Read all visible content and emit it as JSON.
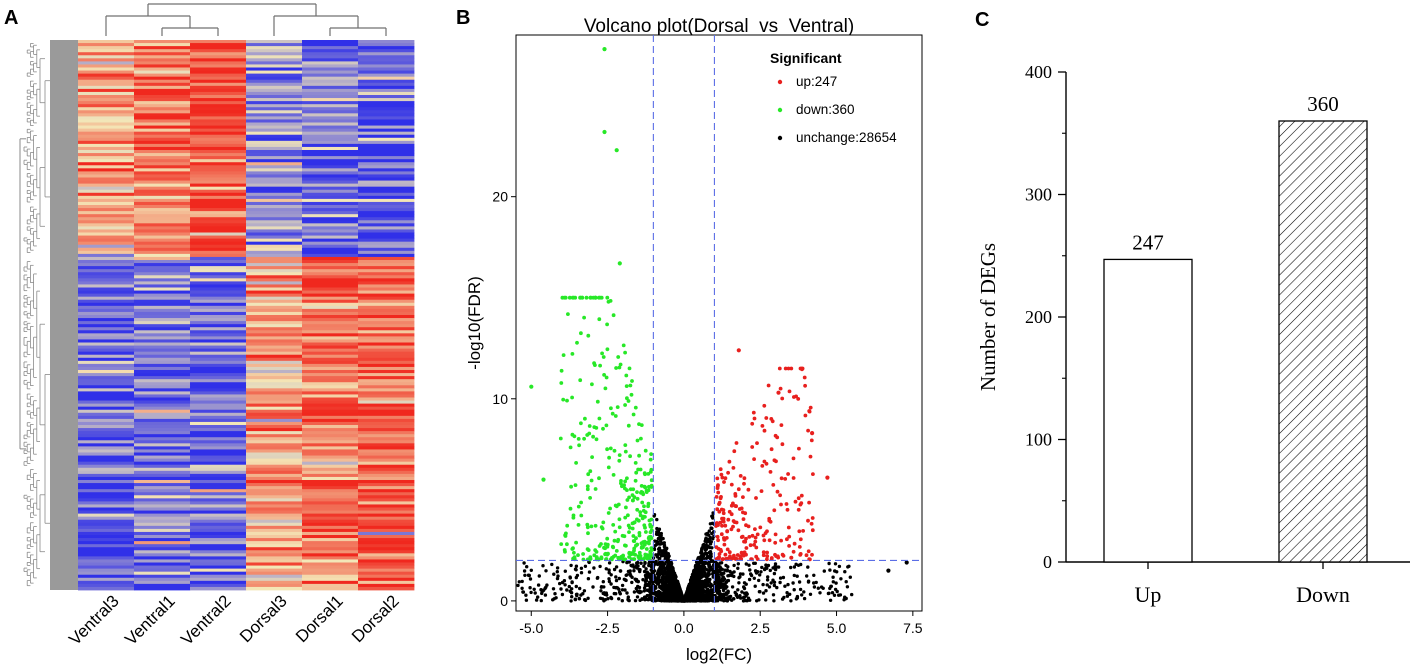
{
  "chart_data": [
    {
      "type": "heatmap",
      "panel_label": "A",
      "columns": [
        "Ventral3",
        "Ventral1",
        "Ventral2",
        "Dorsal3",
        "Dorsal1",
        "Dorsal2"
      ],
      "col_groups": [
        {
          "name": "Ventral",
          "members": [
            "Ventral3",
            "Ventral1",
            "Ventral2"
          ]
        },
        {
          "name": "Dorsal",
          "members": [
            "Dorsal3",
            "Dorsal1",
            "Dorsal2"
          ]
        }
      ],
      "row_clusters": [
        {
          "cluster": "ventral-high",
          "row_fraction": 0.392,
          "mean_profile": [
            0.35,
            0.6,
            0.75,
            -0.45,
            -0.65,
            -0.75
          ]
        },
        {
          "cluster": "dorsal-high",
          "row_fraction": 0.608,
          "mean_profile": [
            -0.7,
            -0.55,
            -0.65,
            0.35,
            0.6,
            0.7
          ]
        }
      ],
      "color_scale": {
        "low": "#3030e8",
        "mid": "#f4e8b8",
        "high": "#f0281e"
      },
      "colors": {
        "dendrogram": "#8a8a8a",
        "dendrogram_top": "#707070"
      }
    },
    {
      "type": "scatter",
      "panel_label": "B",
      "title": "Volcano plot(Dorsal_vs_Ventral)",
      "xlabel": "log2(FC)",
      "ylabel": "-log10(FDR)",
      "xlim": [
        -5.5,
        7.8
      ],
      "ylim": [
        -0.5,
        28
      ],
      "xticks": [
        -5.0,
        -2.5,
        0.0,
        2.5,
        5.0,
        7.5
      ],
      "xtick_labels": [
        "-5.0",
        "-2.5",
        "0.0",
        "2.5",
        "5.0",
        "7.5"
      ],
      "yticks": [
        0,
        10,
        20
      ],
      "ytick_labels": [
        "0",
        "10",
        "20"
      ],
      "thresholds": {
        "fc_low": -1,
        "fc_high": 1,
        "fdr_line": 2
      },
      "legend": {
        "title": "Significant",
        "position": "top-right",
        "entries": [
          {
            "key": "up",
            "label": "up:247",
            "color": "#e8201e"
          },
          {
            "key": "down",
            "label": "down:360",
            "color": "#27e827"
          },
          {
            "key": "unchange",
            "label": "unchange:28654",
            "color": "#000000"
          }
        ]
      },
      "series": [
        {
          "name": "up",
          "count": 247
        },
        {
          "name": "down",
          "count": 360
        },
        {
          "name": "unchange",
          "count": 28654
        }
      ],
      "notable_points": [
        {
          "series": "down",
          "x": -2.6,
          "y": 27.3
        },
        {
          "series": "down",
          "x": -2.6,
          "y": 23.2
        },
        {
          "series": "down",
          "x": -2.2,
          "y": 22.3
        },
        {
          "series": "down",
          "x": -2.1,
          "y": 16.7
        },
        {
          "series": "down",
          "x": -5.0,
          "y": 10.6
        },
        {
          "series": "down",
          "x": -4.6,
          "y": 6.0
        },
        {
          "series": "up",
          "x": 1.8,
          "y": 12.4
        },
        {
          "series": "up",
          "x": 3.1,
          "y": 10.3
        },
        {
          "series": "up",
          "x": 4.2,
          "y": 8.3
        },
        {
          "series": "up",
          "x": 4.7,
          "y": 6.1
        },
        {
          "series": "unchange",
          "x": 7.3,
          "y": 1.9
        },
        {
          "series": "unchange",
          "x": 6.7,
          "y": 1.5
        }
      ],
      "colors": {
        "threshold_line": "#5b6ee6",
        "axis": "#000000"
      }
    },
    {
      "type": "bar",
      "panel_label": "C",
      "categories": [
        "Up",
        "Down"
      ],
      "values": [
        247,
        360
      ],
      "data_labels": [
        "247",
        "360"
      ],
      "ylabel": "Number of DEGs",
      "ylim": [
        0,
        400
      ],
      "yticks": [
        0,
        100,
        200,
        300,
        400
      ],
      "ytick_labels": [
        "0",
        "100",
        "200",
        "300",
        "400"
      ],
      "fills": [
        "white",
        "hatched"
      ],
      "colors": {
        "bar_edge": "#000000",
        "hatch": "#000000"
      }
    }
  ]
}
